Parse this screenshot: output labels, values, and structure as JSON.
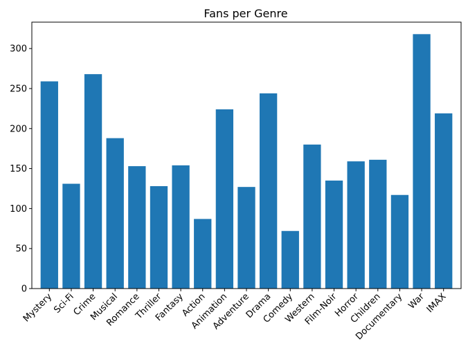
{
  "chart_data": {
    "type": "bar",
    "title": "Fans per Genre",
    "xlabel": "",
    "ylabel": "",
    "categories": [
      "Mystery",
      "Sci-Fi",
      "Crime",
      "Musical",
      "Romance",
      "Thriller",
      "Fantasy",
      "Action",
      "Animation",
      "Adventure",
      "Drama",
      "Comedy",
      "Western",
      "Film-Noir",
      "Horror",
      "Children",
      "Documentary",
      "War",
      "IMAX"
    ],
    "values": [
      259,
      131,
      268,
      188,
      153,
      128,
      154,
      87,
      224,
      127,
      244,
      72,
      180,
      135,
      159,
      161,
      117,
      318,
      219
    ],
    "ylim": [
      0,
      333
    ],
    "yticks": [
      0,
      50,
      100,
      150,
      200,
      250,
      300
    ],
    "grid": false,
    "legend": "none",
    "bar_color": "#1f77b4"
  }
}
